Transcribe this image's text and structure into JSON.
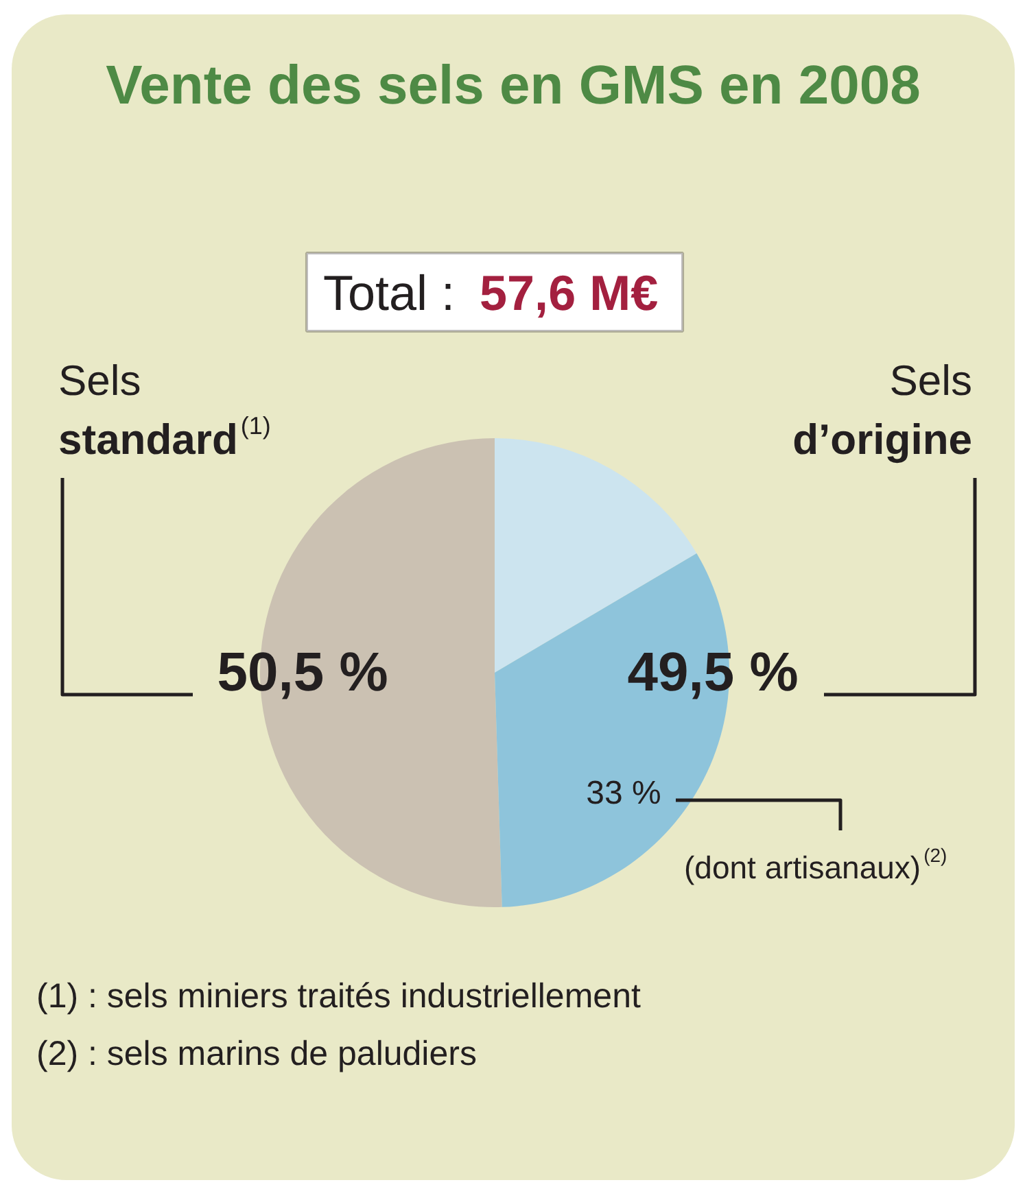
{
  "chart_data": {
    "type": "pie",
    "title": "Vente des sels en GMS en 2008",
    "categories": [
      "Sels standard$^{(1)}$",
      null,
      "(dont artisanaux)$^{(2)}$"
    ],
    "values": [
      50.5,
      16.5,
      33
    ],
    "colors": [
      "#cbc1b2",
      "#cce4ef",
      "#8ec4db"
    ],
    "value_labels": [
      "50,5 %",
      null,
      "33 %"
    ],
    "annotations": [
      "Total : 57,6 M€",
      "Sels d’origine",
      "49,5 %",
      "(1) : sels miniers traités industriellement",
      "(2) : sels marins de paludiers"
    ]
  }
}
